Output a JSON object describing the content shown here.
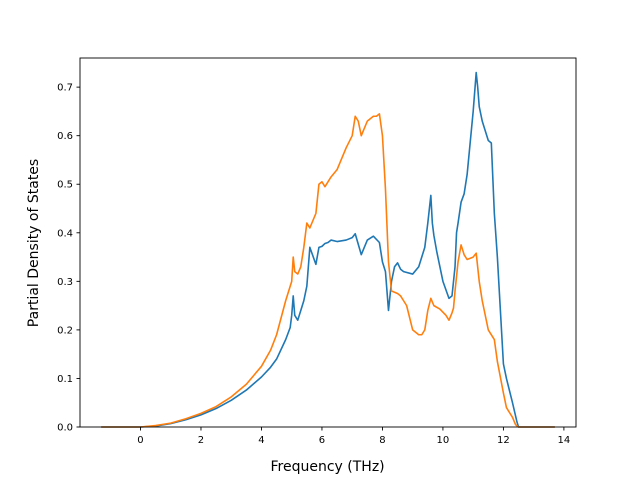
{
  "chart_data": {
    "type": "line",
    "title": "",
    "xlabel": "Frequency (THz)",
    "ylabel": "Partial Density of States",
    "xlim": [
      -2.0,
      14.4
    ],
    "ylim": [
      0.0,
      0.76
    ],
    "xticks": [
      0,
      2,
      4,
      6,
      8,
      10,
      12,
      14
    ],
    "yticks": [
      0.0,
      0.1,
      0.2,
      0.3,
      0.4,
      0.5,
      0.6,
      0.7
    ],
    "xtick_labels": [
      "0",
      "2",
      "4",
      "6",
      "8",
      "10",
      "12",
      "14"
    ],
    "ytick_labels": [
      "0.0",
      "0.1",
      "0.2",
      "0.3",
      "0.4",
      "0.5",
      "0.6",
      "0.7"
    ],
    "grid": false,
    "legend": false,
    "series": [
      {
        "color": "#1f77b4",
        "x": [
          -1.3,
          0.0,
          0.5,
          1.0,
          1.5,
          2.0,
          2.5,
          3.0,
          3.5,
          4.0,
          4.3,
          4.5,
          4.8,
          4.95,
          5.0,
          5.05,
          5.1,
          5.2,
          5.3,
          5.4,
          5.5,
          5.6,
          5.8,
          5.9,
          6.0,
          6.1,
          6.2,
          6.3,
          6.5,
          6.8,
          7.0,
          7.1,
          7.3,
          7.5,
          7.7,
          7.9,
          8.0,
          8.1,
          8.2,
          8.3,
          8.4,
          8.5,
          8.6,
          8.7,
          9.0,
          9.2,
          9.4,
          9.5,
          9.6,
          9.65,
          9.7,
          9.8,
          10.0,
          10.2,
          10.3,
          10.4,
          10.45,
          10.5,
          10.6,
          10.7,
          10.8,
          11.0,
          11.1,
          11.15,
          11.2,
          11.3,
          11.5,
          11.6,
          11.7,
          11.8,
          12.0,
          12.1,
          12.3,
          12.45,
          12.5,
          13.7
        ],
        "y": [
          0.0,
          0.0,
          0.002,
          0.007,
          0.015,
          0.025,
          0.038,
          0.055,
          0.076,
          0.103,
          0.123,
          0.14,
          0.18,
          0.205,
          0.23,
          0.27,
          0.23,
          0.22,
          0.24,
          0.26,
          0.29,
          0.37,
          0.335,
          0.37,
          0.372,
          0.378,
          0.38,
          0.385,
          0.382,
          0.385,
          0.39,
          0.398,
          0.355,
          0.385,
          0.393,
          0.38,
          0.34,
          0.32,
          0.24,
          0.3,
          0.33,
          0.338,
          0.325,
          0.32,
          0.315,
          0.33,
          0.37,
          0.42,
          0.477,
          0.42,
          0.395,
          0.36,
          0.3,
          0.265,
          0.27,
          0.33,
          0.4,
          0.42,
          0.463,
          0.48,
          0.52,
          0.65,
          0.73,
          0.7,
          0.66,
          0.63,
          0.59,
          0.585,
          0.44,
          0.35,
          0.13,
          0.1,
          0.05,
          0.01,
          0.0,
          0.0
        ]
      },
      {
        "color": "#ff7f0e",
        "x": [
          -1.3,
          0.0,
          0.5,
          1.0,
          1.5,
          2.0,
          2.5,
          3.0,
          3.5,
          4.0,
          4.3,
          4.5,
          4.8,
          5.0,
          5.05,
          5.1,
          5.2,
          5.3,
          5.4,
          5.5,
          5.6,
          5.8,
          5.9,
          6.0,
          6.1,
          6.3,
          6.5,
          6.8,
          7.0,
          7.1,
          7.2,
          7.3,
          7.5,
          7.7,
          7.8,
          7.9,
          8.0,
          8.1,
          8.2,
          8.3,
          8.5,
          8.6,
          8.7,
          8.8,
          9.0,
          9.2,
          9.3,
          9.4,
          9.5,
          9.6,
          9.7,
          9.9,
          10.1,
          10.2,
          10.3,
          10.35,
          10.4,
          10.5,
          10.6,
          10.7,
          10.8,
          11.0,
          11.1,
          11.2,
          11.3,
          11.5,
          11.7,
          11.8,
          12.0,
          12.1,
          12.3,
          12.4,
          12.5,
          13.7
        ],
        "y": [
          0.0,
          0.0,
          0.003,
          0.008,
          0.017,
          0.028,
          0.042,
          0.062,
          0.088,
          0.125,
          0.158,
          0.19,
          0.26,
          0.3,
          0.35,
          0.32,
          0.315,
          0.33,
          0.37,
          0.42,
          0.41,
          0.44,
          0.5,
          0.505,
          0.495,
          0.515,
          0.53,
          0.575,
          0.6,
          0.64,
          0.63,
          0.6,
          0.63,
          0.64,
          0.64,
          0.645,
          0.6,
          0.49,
          0.34,
          0.28,
          0.275,
          0.27,
          0.26,
          0.25,
          0.2,
          0.19,
          0.19,
          0.2,
          0.24,
          0.265,
          0.25,
          0.243,
          0.23,
          0.22,
          0.235,
          0.245,
          0.28,
          0.34,
          0.375,
          0.355,
          0.345,
          0.35,
          0.358,
          0.3,
          0.26,
          0.2,
          0.18,
          0.135,
          0.07,
          0.04,
          0.02,
          0.005,
          0.0,
          0.0
        ]
      }
    ]
  }
}
